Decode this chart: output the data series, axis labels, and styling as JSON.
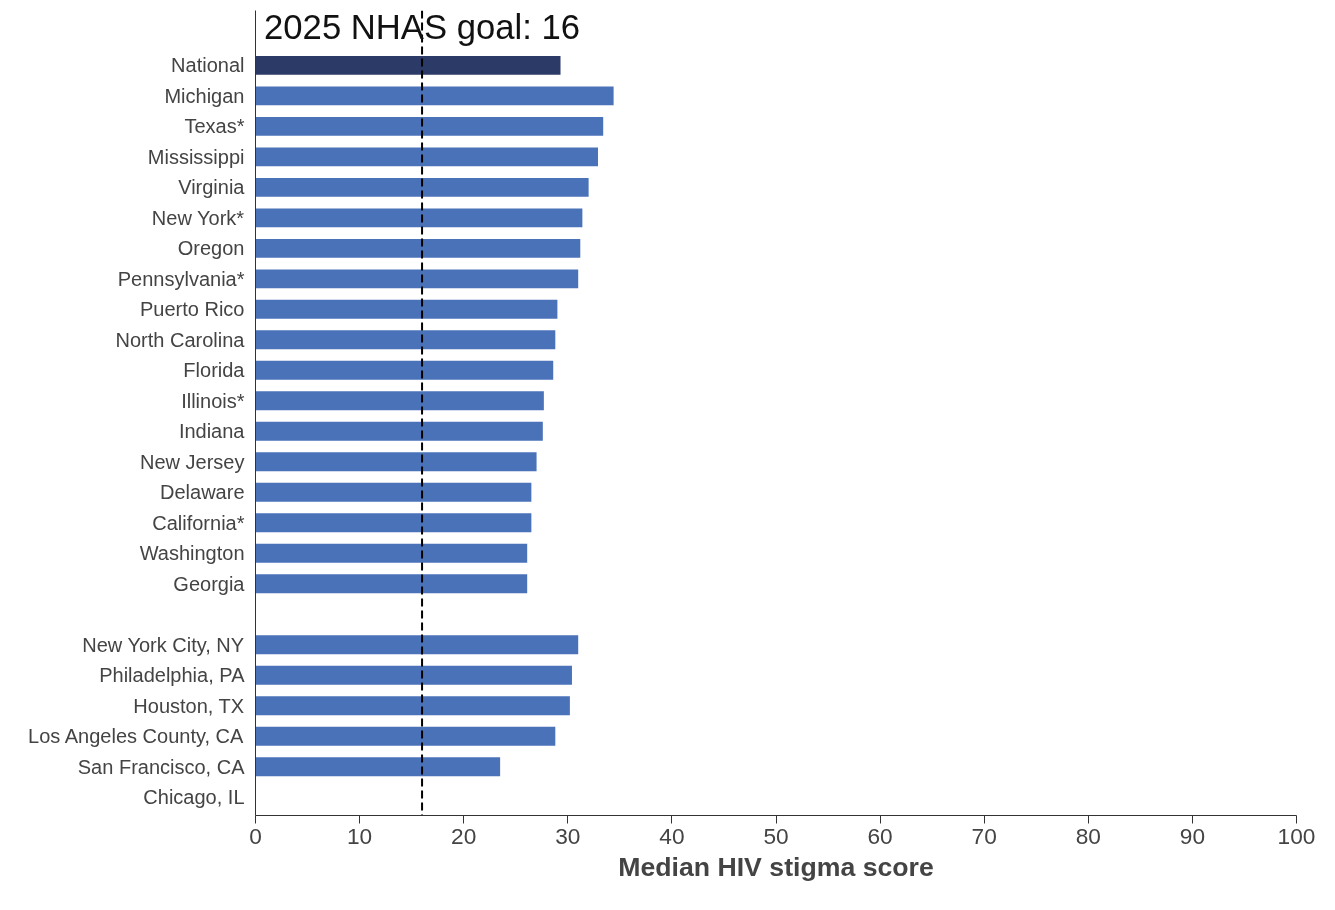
{
  "chart_data": {
    "type": "bar",
    "orientation": "horizontal",
    "xlabel": "Median HIV stigma score",
    "categories": [
      "National",
      "Michigan",
      "Texas*",
      "Mississippi",
      "Virginia",
      "New York*",
      "Oregon",
      "Pennsylvania*",
      "Puerto Rico",
      "North Carolina",
      "Florida",
      "Illinois*",
      "Indiana",
      "New Jersey",
      "Delaware",
      "California*",
      "Washington",
      "Georgia",
      null,
      "New York City, NY",
      "Philadelphia, PA",
      "Houston, TX",
      "Los Angeles County, CA",
      "San Francisco, CA",
      "Chicago, IL"
    ],
    "values": [
      29.3,
      34.4,
      33.4,
      32.9,
      32.0,
      31.4,
      31.2,
      31.0,
      29.0,
      28.8,
      28.6,
      27.7,
      27.6,
      27.0,
      26.5,
      26.5,
      26.1,
      26.1,
      null,
      31.0,
      30.4,
      30.2,
      28.8,
      23.5,
      null
    ],
    "colors": [
      "#2b3a67",
      "#4a72b8",
      "#4a72b8",
      "#4a72b8",
      "#4a72b8",
      "#4a72b8",
      "#4a72b8",
      "#4a72b8",
      "#4a72b8",
      "#4a72b8",
      "#4a72b8",
      "#4a72b8",
      "#4a72b8",
      "#4a72b8",
      "#4a72b8",
      "#4a72b8",
      "#4a72b8",
      "#4a72b8",
      "#4a72b8",
      "#4a72b8",
      "#4a72b8",
      "#4a72b8",
      "#4a72b8",
      "#4a72b8",
      "#4a72b8"
    ],
    "xlim": [
      0,
      100
    ],
    "xticks": [
      0,
      10,
      20,
      30,
      40,
      50,
      60,
      70,
      80,
      90,
      100
    ],
    "ref_lines": [
      {
        "axis": "x",
        "value": 16,
        "label": "2025 NHAS goal: 16",
        "line_style": "dashed",
        "color": "#000000"
      }
    ],
    "grid": false
  }
}
